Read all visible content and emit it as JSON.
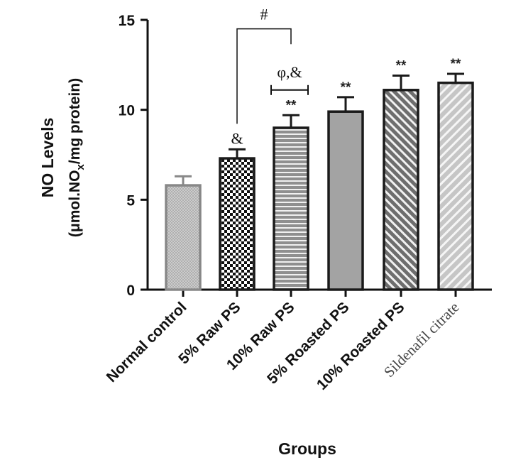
{
  "chart_data": {
    "type": "bar",
    "xlabel": "Groups",
    "ylabel_line1": "NO Levels",
    "ylabel_line2_prefix": "(μmol.NO",
    "ylabel_line2_sub": "x",
    "ylabel_line2_suffix": "/mg protein)",
    "ylim": [
      0,
      15
    ],
    "yticks": [
      0,
      5,
      10,
      15
    ],
    "grid": false,
    "categories": [
      "Normal control",
      "5% Raw PS",
      "10% Raw PS",
      "5% Roasted PS",
      "10% Roasted PS",
      "Sildenafil citrate"
    ],
    "values": [
      5.8,
      7.3,
      9.0,
      9.9,
      11.1,
      11.5
    ],
    "errors": [
      0.5,
      0.5,
      0.7,
      0.8,
      0.8,
      0.5
    ],
    "bar_annotations": [
      "",
      "&",
      "**",
      "**",
      "**",
      "**"
    ],
    "bracket_annotations": [
      {
        "text": "#",
        "from_category": "5% Raw PS",
        "to_category": "10% Raw PS"
      },
      {
        "text": "φ,&",
        "from_category": "10% Raw PS",
        "to_category": "10% Raw PS"
      }
    ],
    "bar_patterns": [
      "crosshatch-light",
      "checkerboard",
      "horizontal-lines",
      "solid-gray",
      "diagonal-dense",
      "diagonal-light"
    ],
    "colors": {
      "bar_fill": "#9a9a9a",
      "bar_stroke": "#1a1a1a",
      "light_fill": "#d2d2d2",
      "stroke_light": "#888888"
    }
  }
}
